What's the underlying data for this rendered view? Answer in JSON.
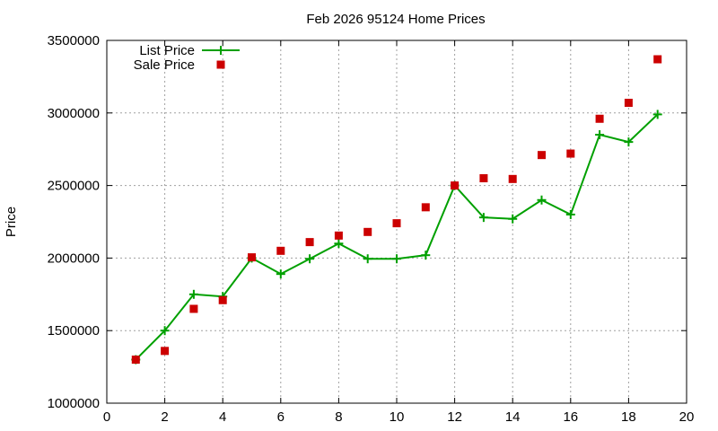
{
  "chart_data": {
    "type": "line",
    "title": "Feb 2026 95124 Home Prices",
    "xlabel": "",
    "ylabel": "Price",
    "xlim": [
      0,
      20
    ],
    "ylim": [
      1000000,
      3500000
    ],
    "x_ticks": [
      0,
      2,
      4,
      6,
      8,
      10,
      12,
      14,
      16,
      18,
      20
    ],
    "y_ticks": [
      1000000,
      1500000,
      2000000,
      2500000,
      3000000,
      3500000
    ],
    "y_tick_labels": [
      "1000000",
      "1500000",
      "2000000",
      "2500000",
      "3000000",
      "3500000"
    ],
    "x_tick_labels": [
      "0",
      "2",
      "4",
      "6",
      "8",
      "10",
      "12",
      "14",
      "16",
      "18",
      "20"
    ],
    "grid": true,
    "legend_position": "top-left",
    "x": [
      1,
      2,
      3,
      4,
      5,
      6,
      7,
      8,
      9,
      10,
      11,
      12,
      13,
      14,
      15,
      16,
      17,
      18,
      19
    ],
    "series": [
      {
        "name": "List Price",
        "style": "linespoints",
        "marker": "plus",
        "color": "#00a000",
        "values": [
          1300000,
          1500000,
          1750000,
          1735000,
          2000000,
          1890000,
          1995000,
          2100000,
          1995000,
          1995000,
          2020000,
          2500000,
          2280000,
          2270000,
          2400000,
          2300000,
          2850000,
          2800000,
          2990000
        ]
      },
      {
        "name": "Sale Price",
        "style": "points",
        "marker": "square",
        "color": "#cc0000",
        "values": [
          1300000,
          1360000,
          1650000,
          1710000,
          2005000,
          2050000,
          2110000,
          2155000,
          2180000,
          2240000,
          2350000,
          2500000,
          2550000,
          2545000,
          2710000,
          2720000,
          2960000,
          3070000,
          3370000
        ]
      }
    ]
  }
}
